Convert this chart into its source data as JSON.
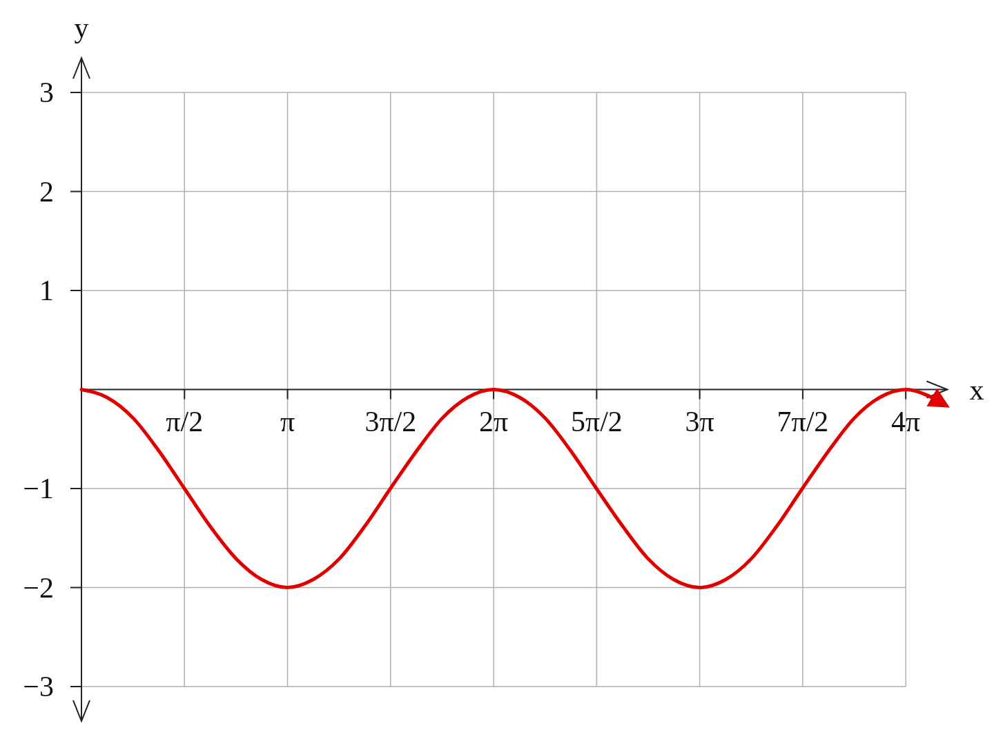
{
  "chart_data": {
    "type": "line",
    "xlabel": "x",
    "ylabel": "y",
    "xlim": [
      0,
      13.2
    ],
    "ylim": [
      -3,
      3
    ],
    "xticks": [
      {
        "value": 1.5708,
        "label": "π/2"
      },
      {
        "value": 3.1416,
        "label": "π"
      },
      {
        "value": 4.7124,
        "label": "3π/2"
      },
      {
        "value": 6.2832,
        "label": "2π"
      },
      {
        "value": 7.854,
        "label": "5π/2"
      },
      {
        "value": 9.4248,
        "label": "3π"
      },
      {
        "value": 10.9956,
        "label": "7π/2"
      },
      {
        "value": 12.5664,
        "label": "4π"
      }
    ],
    "yticks": [
      {
        "value": -3,
        "label": "−3"
      },
      {
        "value": -2,
        "label": "−2"
      },
      {
        "value": -1,
        "label": "−1"
      },
      1,
      2,
      3
    ],
    "grid": true,
    "marker": "none",
    "line_style": "solid",
    "series": [
      {
        "color": "#e00000",
        "x": [
          0,
          0.39,
          0.79,
          1.18,
          1.57,
          1.96,
          2.36,
          2.75,
          3.14,
          3.53,
          3.93,
          4.32,
          4.71,
          5.11,
          5.5,
          5.89,
          6.28,
          6.68,
          7.07,
          7.46,
          7.85,
          8.25,
          8.64,
          9.03,
          9.42,
          9.82,
          10.21,
          10.6,
          10.99,
          11.39,
          11.78,
          12.17,
          12.57,
          12.9,
          13.1
        ],
        "values": [
          0,
          -0.08,
          -0.29,
          -0.62,
          -1,
          -1.38,
          -1.71,
          -1.92,
          -2,
          -1.92,
          -1.71,
          -1.38,
          -1,
          -0.62,
          -0.29,
          -0.08,
          0,
          -0.08,
          -0.29,
          -0.62,
          -1,
          -1.38,
          -1.71,
          -1.92,
          -2,
          -1.92,
          -1.71,
          -1.38,
          -1,
          -0.62,
          -0.29,
          -0.08,
          0,
          -0.06,
          -0.13
        ]
      }
    ]
  }
}
